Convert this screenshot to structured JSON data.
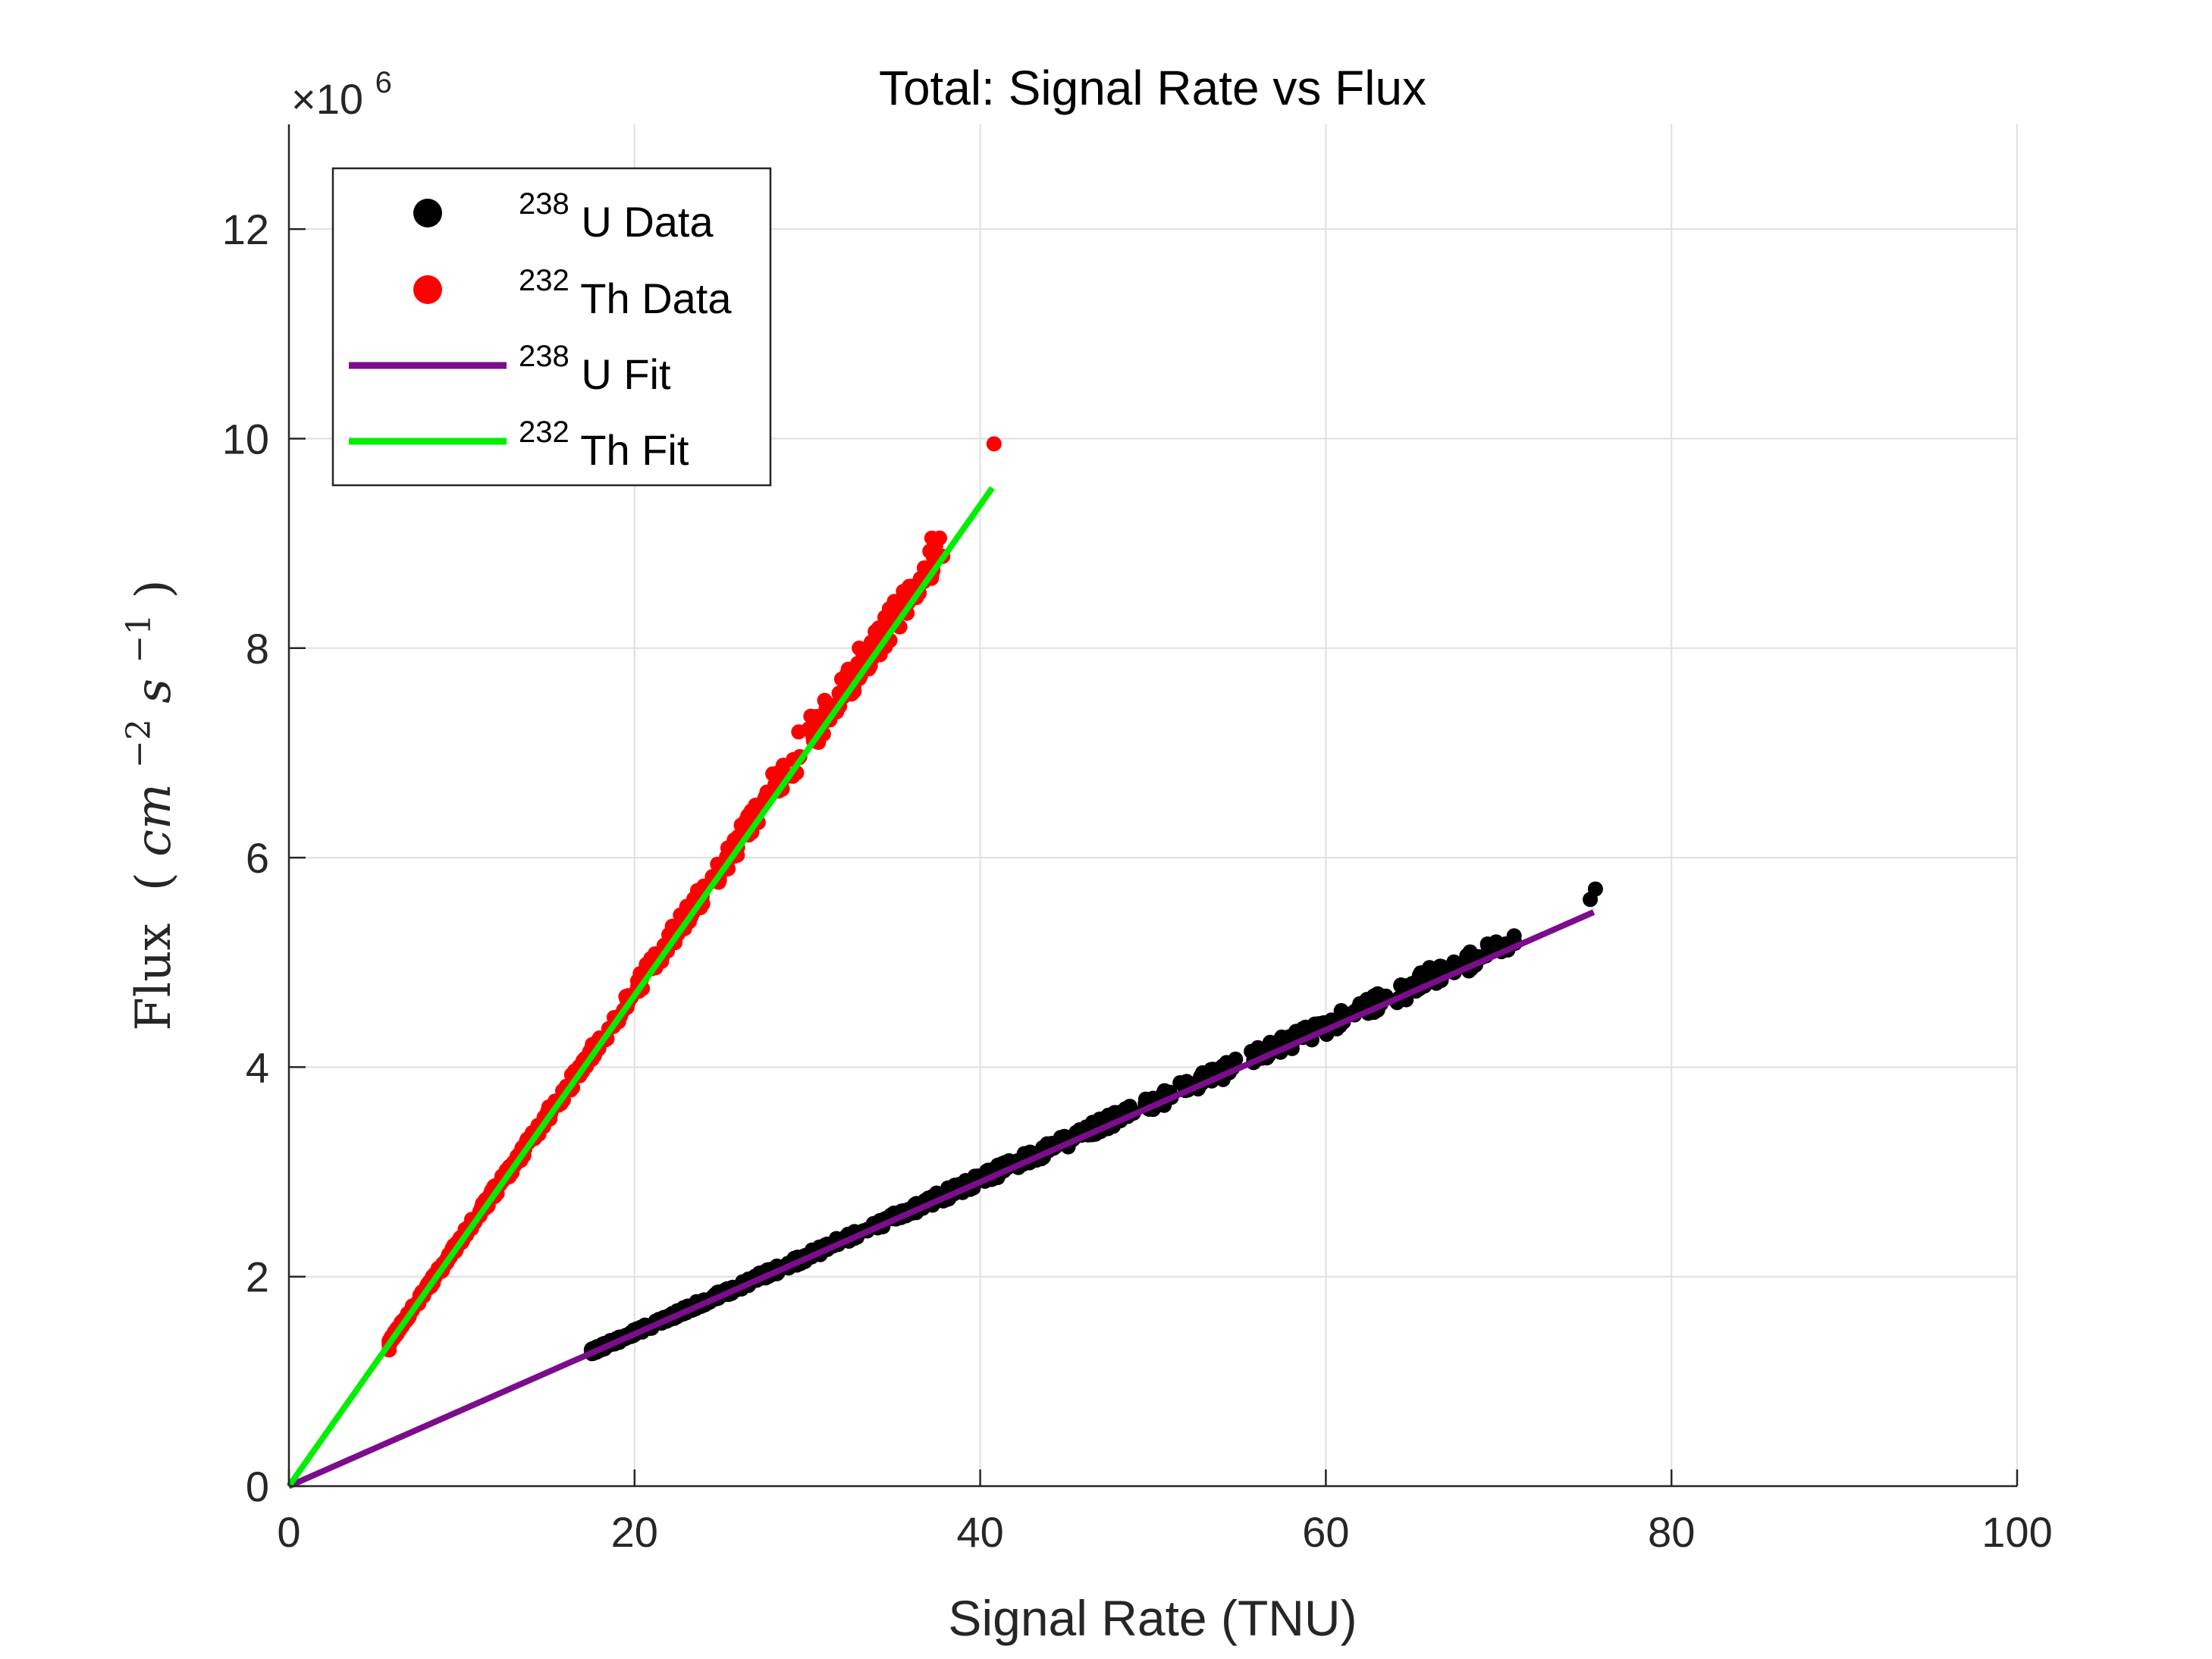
{
  "chart_data": {
    "type": "scatter",
    "title": "Total: Signal Rate vs Flux",
    "xlabel": "Signal Rate (TNU)",
    "ylabel": {
      "prefix": "Flux",
      "open": "(",
      "var1": "cm",
      "exp1": "−2",
      "var2": "s",
      "exp2": "−1",
      "close": ")"
    },
    "y_multiplier": {
      "base": "×10",
      "exp": "6"
    },
    "xlim": [
      0,
      100
    ],
    "ylim": [
      0,
      13
    ],
    "y_scale_factor": 1000000,
    "grid": true,
    "legend_position": "top-left",
    "x_ticks": [
      "0",
      "20",
      "40",
      "60",
      "80",
      "100"
    ],
    "y_ticks": [
      "0",
      "2",
      "4",
      "6",
      "8",
      "10",
      "12"
    ],
    "series": [
      {
        "name": {
          "sup": "238",
          "text": "U Data"
        },
        "kind": "scatter",
        "color": "#000000",
        "x_range": [
          17.5,
          75.6
        ],
        "approx_slope": 0.0728,
        "highlights": [
          [
            17.5,
            1.3
          ],
          [
            19,
            1.38
          ],
          [
            20.5,
            1.5
          ],
          [
            63,
            4.7
          ],
          [
            65.5,
            4.9
          ],
          [
            66,
            4.95
          ],
          [
            75.3,
            5.6
          ],
          [
            75.6,
            5.7
          ]
        ]
      },
      {
        "name": {
          "sup": "232",
          "text": "Th Data"
        },
        "kind": "scatter",
        "color": "#ff0000",
        "x_range": [
          5.8,
          40.8
        ],
        "approx_slope": 0.235,
        "highlights": [
          [
            5.8,
            1.3
          ],
          [
            26,
            6.2
          ],
          [
            27,
            6.5
          ],
          [
            28,
            6.8
          ],
          [
            29.5,
            7.2
          ],
          [
            30.2,
            7.35
          ],
          [
            31,
            7.5
          ],
          [
            32.3,
            7.7
          ],
          [
            33,
            8.0
          ],
          [
            37.2,
            9.05
          ],
          [
            40.8,
            9.95
          ]
        ]
      },
      {
        "name": {
          "sup": "238",
          "text": "U Fit"
        },
        "kind": "line",
        "color": "#7b0d8c",
        "x": [
          0,
          75.5
        ],
        "y": [
          0,
          5.48
        ]
      },
      {
        "name": {
          "sup": "232",
          "text": "Th Fit"
        },
        "kind": "line",
        "color": "#00ee00",
        "x": [
          0,
          40.7
        ],
        "y": [
          0,
          9.53
        ]
      }
    ]
  }
}
